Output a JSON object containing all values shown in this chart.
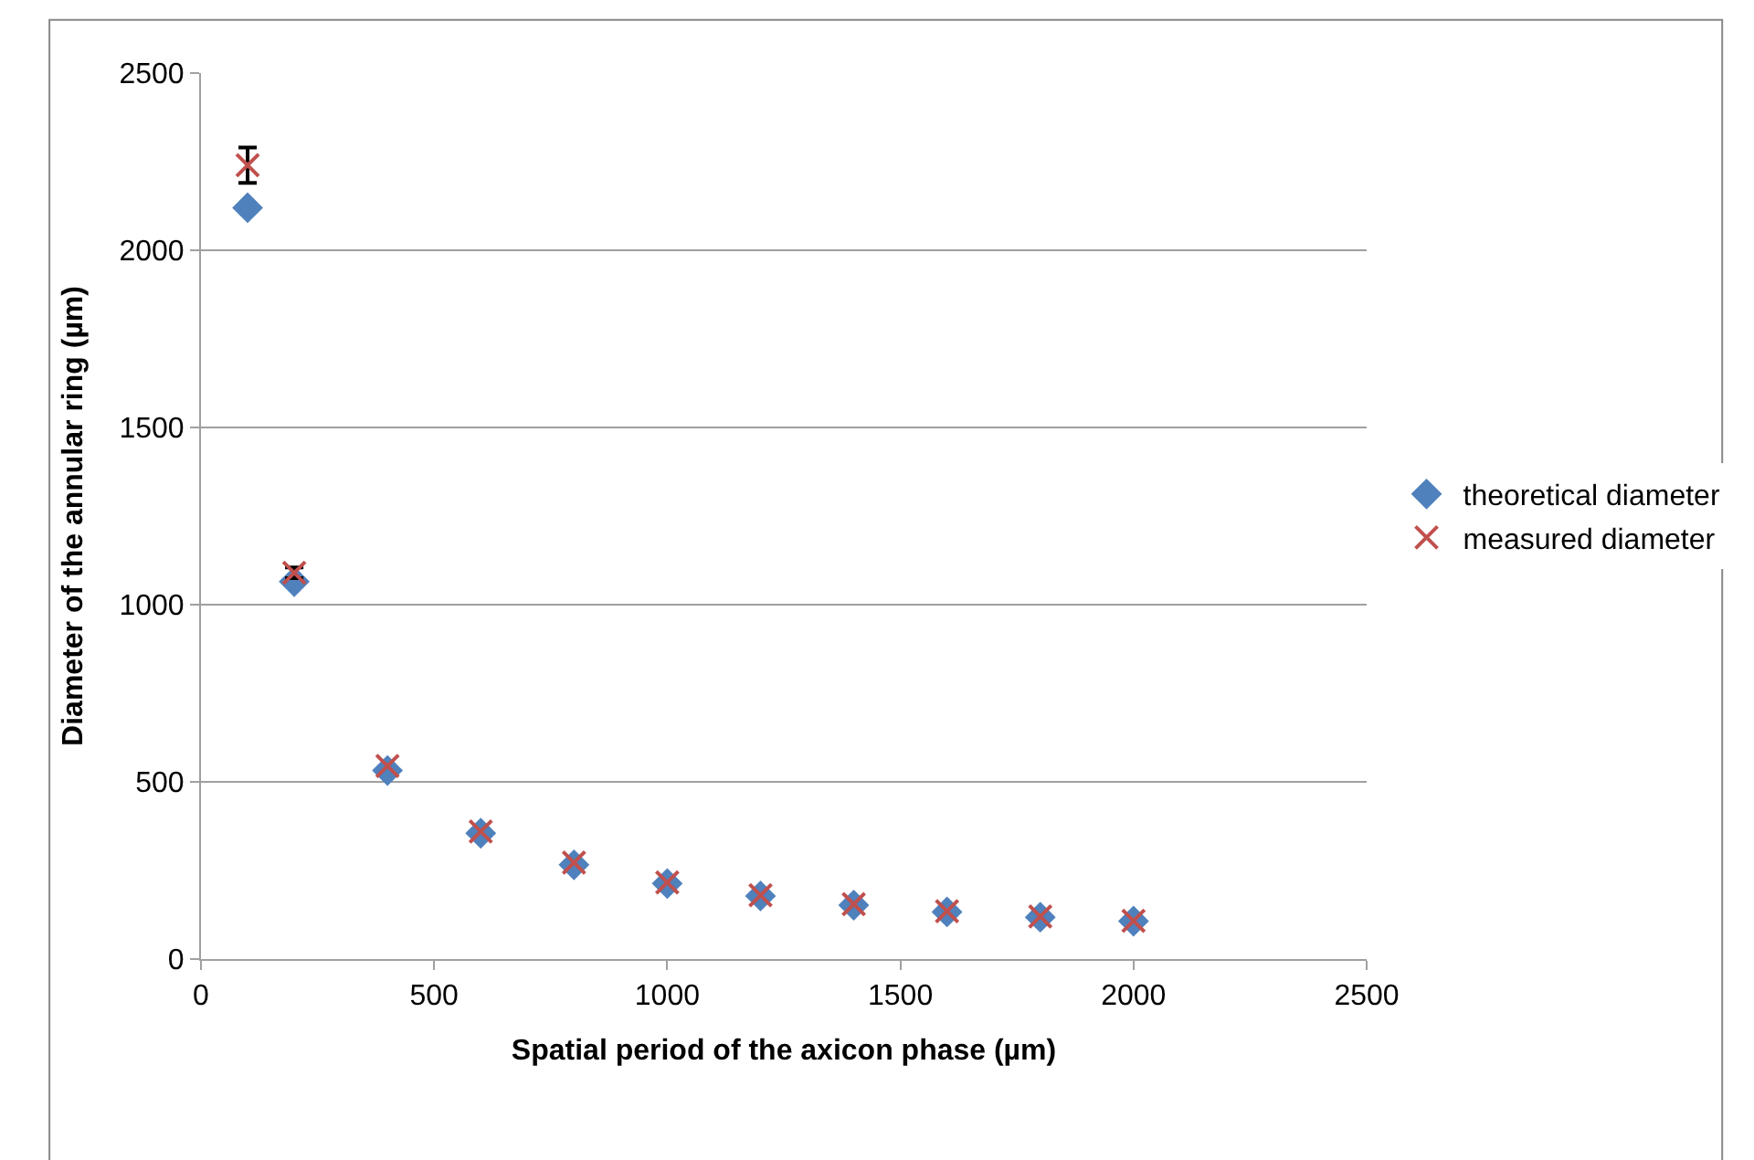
{
  "chart_data": {
    "type": "scatter",
    "xlabel": "Spatial period of the axicon phase (µm)",
    "ylabel": "Diameter of the annular ring (µm)",
    "x": [
      100,
      200,
      400,
      600,
      800,
      1000,
      1200,
      1400,
      1600,
      1800,
      2000
    ],
    "series": [
      {
        "name": "theoretical diameter",
        "color": "#4f81bd",
        "marker": "diamond",
        "values": [
          2120,
          1065,
          532,
          355,
          266,
          213,
          178,
          152,
          133,
          118,
          107
        ]
      },
      {
        "name": "measured diameter",
        "color": "#c0504d",
        "marker": "cross",
        "values": [
          2240,
          1090,
          545,
          360,
          272,
          216,
          180,
          155,
          135,
          120,
          108
        ],
        "errors": [
          50,
          15,
          null,
          null,
          null,
          null,
          null,
          null,
          null,
          null,
          null
        ]
      }
    ],
    "xlim": [
      0,
      2500
    ],
    "xticks": [
      0,
      500,
      1000,
      1500,
      2000,
      2500
    ],
    "ylim": [
      0,
      2500
    ],
    "yticks": [
      0,
      500,
      1000,
      1500,
      2000,
      2500
    ],
    "grid": "y",
    "legend": "right"
  }
}
